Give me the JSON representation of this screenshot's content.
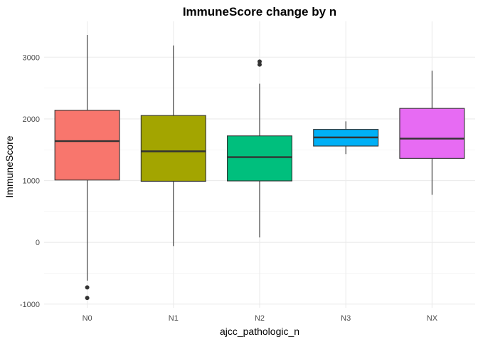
{
  "chart_data": {
    "type": "boxplot",
    "title": "ImmuneScore change by n",
    "xlabel": "ajcc_pathologic_n",
    "ylabel": "ImmuneScore",
    "categories": [
      "N0",
      "N1",
      "N2",
      "N3",
      "NX"
    ],
    "ylim": [
      -1060,
      3580
    ],
    "yticks": [
      -1000,
      0,
      1000,
      2000,
      3000
    ],
    "ytick_labels": [
      "-1000",
      "0",
      "1000",
      "2000",
      "3000"
    ],
    "grid": true,
    "legend": "none",
    "boxes": [
      {
        "category": "N0",
        "color": "#F8766D",
        "whisker_low": -620,
        "q1": 1010,
        "median": 1640,
        "q3": 2140,
        "whisker_high": 3360,
        "outliers": [
          -730,
          -900
        ]
      },
      {
        "category": "N1",
        "color": "#A3A500",
        "whisker_low": -60,
        "q1": 990,
        "median": 1475,
        "q3": 2055,
        "whisker_high": 3190,
        "outliers": []
      },
      {
        "category": "N2",
        "color": "#00BF7D",
        "whisker_low": 80,
        "q1": 995,
        "median": 1380,
        "q3": 1725,
        "whisker_high": 2570,
        "outliers": [
          2880,
          2930
        ]
      },
      {
        "category": "N3",
        "color": "#00B0F6",
        "whisker_low": 1430,
        "q1": 1560,
        "median": 1700,
        "q3": 1830,
        "whisker_high": 1960,
        "outliers": []
      },
      {
        "category": "NX",
        "color": "#E76BF3",
        "whisker_low": 770,
        "q1": 1360,
        "median": 1680,
        "q3": 2170,
        "whisker_high": 2780,
        "outliers": []
      }
    ]
  }
}
